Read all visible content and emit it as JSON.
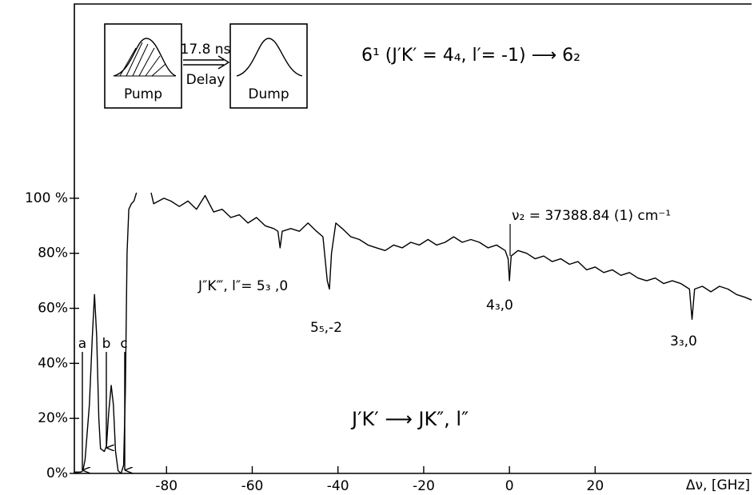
{
  "chart_data": {
    "type": "line",
    "x_label": "Δν, [GHz]",
    "xlim": [
      -101.5,
      56.5
    ],
    "xticks": [
      -80,
      -60,
      -40,
      -20,
      0,
      20
    ],
    "ylim": [
      0,
      170.6
    ],
    "yticks": [
      {
        "value": 0,
        "label": "0%"
      },
      {
        "value": 20,
        "label": "20%"
      },
      {
        "value": 40,
        "label": "40%"
      },
      {
        "value": 60,
        "label": "60%"
      },
      {
        "value": 80,
        "label": "80%"
      },
      {
        "value": 100,
        "label": "100 %"
      }
    ],
    "color": "#000000",
    "x": [
      -101.5,
      -100,
      -99.5,
      -99,
      -98,
      -97.3,
      -96.8,
      -96.3,
      -95.8,
      -95.4,
      -94.5,
      -94,
      -93.5,
      -92.9,
      -92.4,
      -91.9,
      -91.3,
      -90.6,
      -90,
      -89.6,
      -89.2,
      -88.8,
      -88.2,
      -87.6,
      -87,
      -86,
      -83.6,
      -83,
      -80.6,
      -79,
      -77,
      -75,
      -73,
      -71,
      -69,
      -67,
      -65,
      -63,
      -61,
      -59,
      -57,
      -55,
      -54,
      -53.5,
      -53,
      -51,
      -49,
      -47,
      -45,
      -43.5,
      -42.5,
      -42,
      -41.5,
      -40.5,
      -39,
      -37,
      -35,
      -33,
      -31,
      -29,
      -27,
      -25,
      -23,
      -21,
      -19,
      -17,
      -15,
      -13,
      -11,
      -9,
      -7,
      -5,
      -3,
      -1,
      -0.3,
      0,
      0.4,
      2,
      4,
      6,
      8,
      10,
      12,
      14,
      16,
      18,
      20,
      22,
      24,
      26,
      28,
      30,
      32,
      34,
      36,
      38,
      40,
      42,
      42.6,
      43.2,
      45,
      47,
      49,
      51,
      53,
      55,
      56.5
    ],
    "values": [
      0.5,
      0.5,
      1,
      5,
      25,
      50,
      65,
      50,
      20,
      9,
      8,
      10,
      22,
      32,
      25,
      8,
      1,
      0,
      3,
      30,
      80,
      96,
      98,
      99,
      102,
      null,
      102,
      98,
      100,
      99,
      97,
      99,
      96,
      101,
      95,
      96,
      93,
      94,
      91,
      93,
      90,
      89,
      88,
      82,
      88,
      89,
      88,
      91,
      88,
      86,
      70,
      67,
      80,
      91,
      89,
      86,
      85,
      83,
      82,
      81,
      83,
      82,
      84,
      83,
      85,
      83,
      84,
      86,
      84,
      85,
      84,
      82,
      83,
      81,
      78,
      70,
      79,
      81,
      80,
      78,
      79,
      77,
      78,
      76,
      77,
      74,
      75,
      73,
      74,
      72,
      73,
      71,
      70,
      71,
      69,
      70,
      69,
      67,
      56,
      67,
      68,
      66,
      68,
      67,
      65,
      64,
      63
    ],
    "annotations": [
      "a",
      "b",
      "c",
      "J″K‴, l″= 5₃ ,0",
      "5₅,-2",
      "4₃,0",
      "3₃,0",
      "ν₂ = 37388.84 (1) cm⁻¹",
      "J′K′ ⟶ JK″, l″",
      "Pump",
      "17.8 ns",
      "Delay",
      "Dump",
      "6¹ (J′K′ = 4₄, l′= -1) ⟶ 6₂"
    ]
  }
}
